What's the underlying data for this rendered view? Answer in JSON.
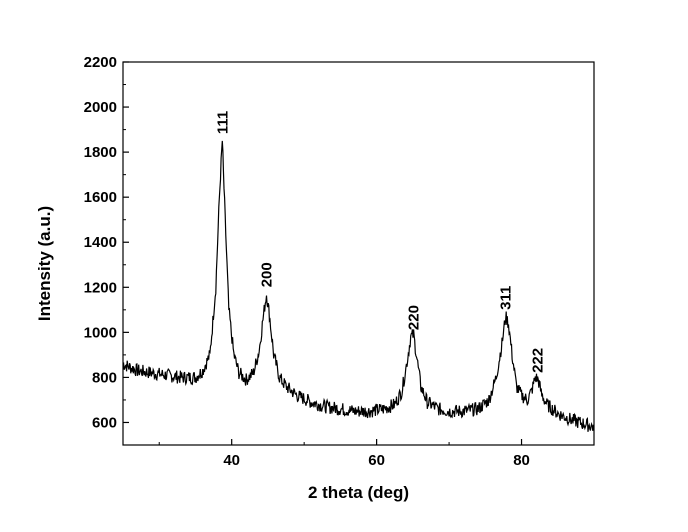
{
  "chart_data": {
    "type": "line",
    "title": "",
    "xlabel": "2 theta (deg)",
    "ylabel": "Intensity (a.u.)",
    "xlim": [
      25,
      90
    ],
    "ylim": [
      500,
      2200
    ],
    "xticks": [
      40,
      60,
      80
    ],
    "yticks": [
      600,
      800,
      1000,
      1200,
      1400,
      1600,
      1800,
      2000,
      2200
    ],
    "grid": false,
    "line_color": "#000000",
    "series": [
      {
        "x": [
          25,
          27,
          29,
          31,
          33,
          35,
          36,
          37,
          37.8,
          38.3,
          38.7,
          39.1,
          39.6,
          40.3,
          41,
          42,
          43,
          43.8,
          44.4,
          44.8,
          45.2,
          45.8,
          46.6,
          47.5,
          49,
          51,
          53,
          55,
          57,
          59,
          61,
          62.5,
          63.5,
          64.2,
          64.7,
          65.1,
          65.5,
          66.1,
          67,
          68.5,
          70,
          72,
          74,
          75.5,
          76.5,
          77.3,
          77.8,
          78.2,
          78.7,
          79.3,
          80,
          80.8,
          81.4,
          81.9,
          82.3,
          82.8,
          83.5,
          85,
          87,
          89,
          90
        ],
        "y": [
          860,
          830,
          820,
          810,
          800,
          800,
          830,
          900,
          1200,
          1600,
          1850,
          1500,
          1100,
          900,
          820,
          790,
          820,
          920,
          1080,
          1170,
          1080,
          900,
          800,
          760,
          720,
          690,
          670,
          660,
          650,
          650,
          660,
          680,
          740,
          870,
          980,
          990,
          900,
          760,
          690,
          660,
          650,
          650,
          660,
          700,
          800,
          950,
          1070,
          1040,
          900,
          760,
          720,
          700,
          740,
          800,
          790,
          720,
          680,
          640,
          610,
          590,
          580
        ]
      }
    ],
    "annotations": [
      {
        "text": "111",
        "x": 38.7,
        "y": 1880
      },
      {
        "text": "200",
        "x": 44.8,
        "y": 1200
      },
      {
        "text": "220",
        "x": 65.1,
        "y": 1010
      },
      {
        "text": "311",
        "x": 77.8,
        "y": 1100
      },
      {
        "text": "222",
        "x": 82.2,
        "y": 820
      }
    ]
  }
}
